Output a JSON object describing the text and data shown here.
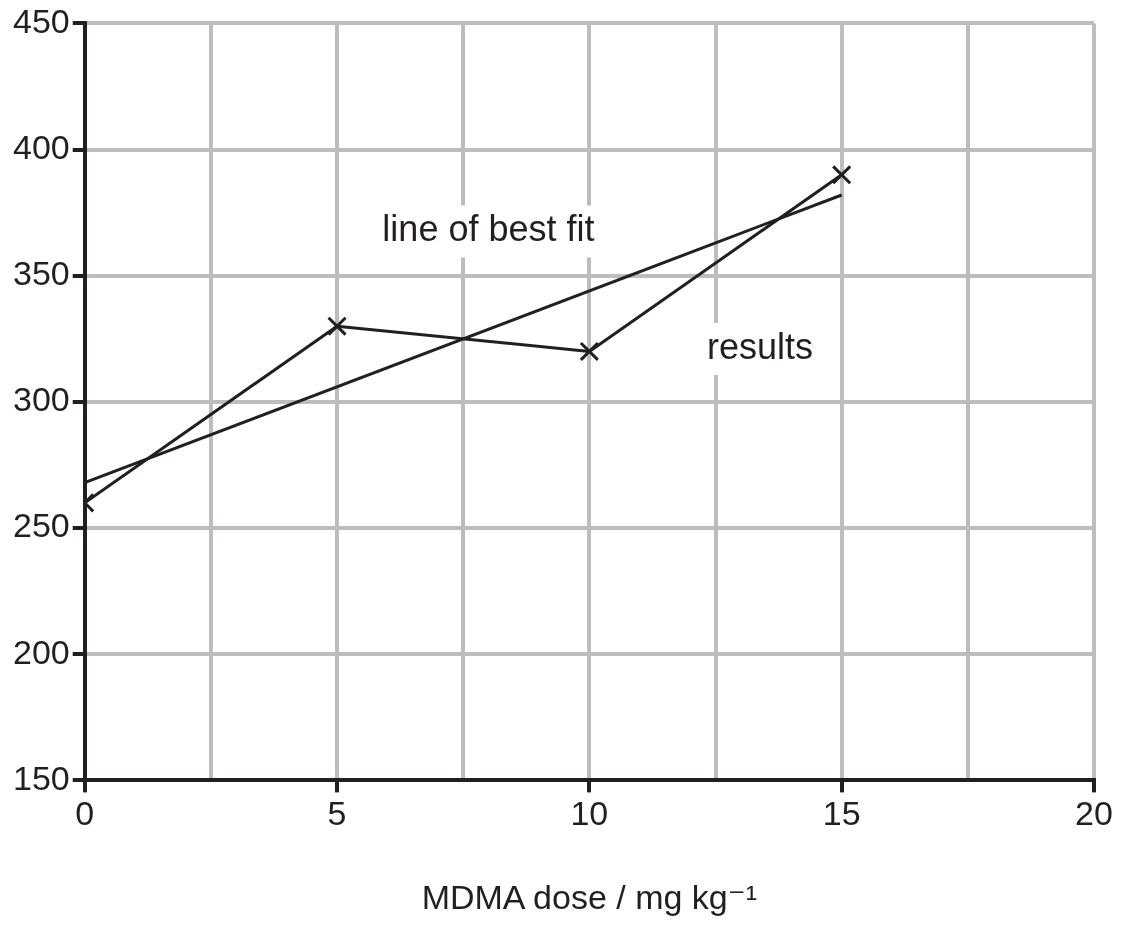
{
  "chart_data": {
    "type": "line",
    "xlabel": "MDMA dose / mg kg⁻¹",
    "x": [
      0,
      5,
      10,
      15
    ],
    "series": [
      {
        "type": "line",
        "color": "#231f20",
        "marker": "cross",
        "values": [
          260,
          330,
          320,
          390
        ]
      },
      {
        "type": "line",
        "color": "#231f20",
        "marker": "none",
        "x": [
          0,
          15
        ],
        "values": [
          268,
          382
        ]
      }
    ],
    "xlim": [
      0,
      20
    ],
    "xticks": [
      0,
      {
        "value": 2.5,
        "label": null
      },
      5,
      {
        "value": 7.5,
        "label": null
      },
      10,
      {
        "value": 12.5,
        "label": null
      },
      15,
      {
        "value": 17.5,
        "label": null
      },
      20
    ],
    "ylim": [
      150,
      450
    ],
    "yticks": [
      150,
      200,
      250,
      300,
      350,
      400,
      450
    ],
    "grid": true,
    "legend": false,
    "annotations": [
      "line of best fit",
      "results"
    ]
  }
}
